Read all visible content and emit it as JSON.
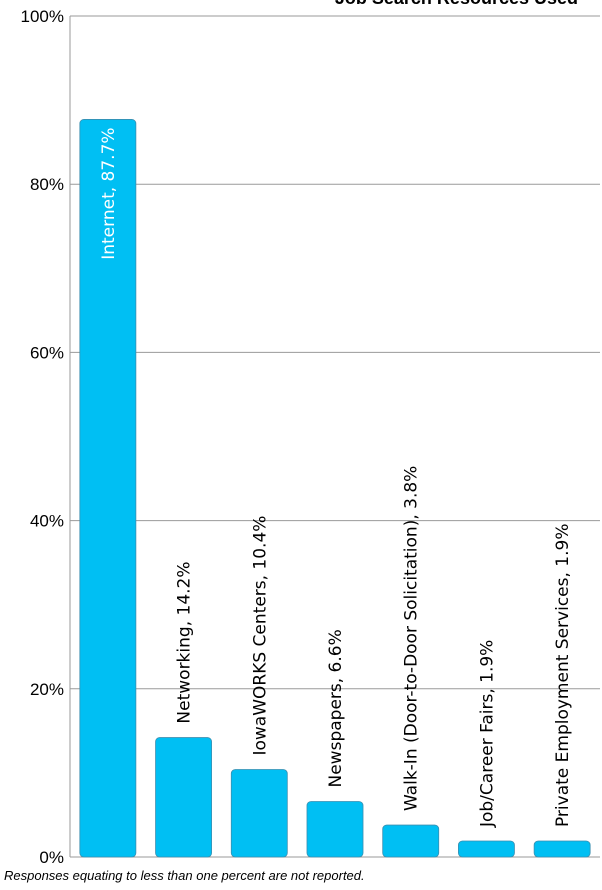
{
  "chart_data": {
    "type": "bar",
    "title": "Job Search Resources Used",
    "categories": [
      "Internet",
      "Networking",
      "IowaWORKS Centers",
      "Newspapers",
      "Walk-In (Door-to-Door Solicitation)",
      "Job/Career Fairs",
      "Private Employment Services"
    ],
    "values": [
      87.7,
      14.2,
      10.4,
      6.6,
      3.8,
      1.9,
      1.9
    ],
    "data_labels": [
      "Internet, 87.7%",
      "Networking, 14.2%",
      "IowaWORKS Centers, 10.4%",
      "Newspapers, 6.6%",
      "Walk-In (Door-to-Door Solicitation), 3.8%",
      "Job/Career Fairs, 1.9%",
      "Private Employment Services, 1.9%"
    ],
    "ylim": [
      0,
      100
    ],
    "yticks": [
      "0%",
      "20%",
      "40%",
      "60%",
      "80%",
      "100%"
    ],
    "grid": true,
    "bar_color": "#00BFF3"
  },
  "footnote": "Responses equating to less than one percent are not reported."
}
